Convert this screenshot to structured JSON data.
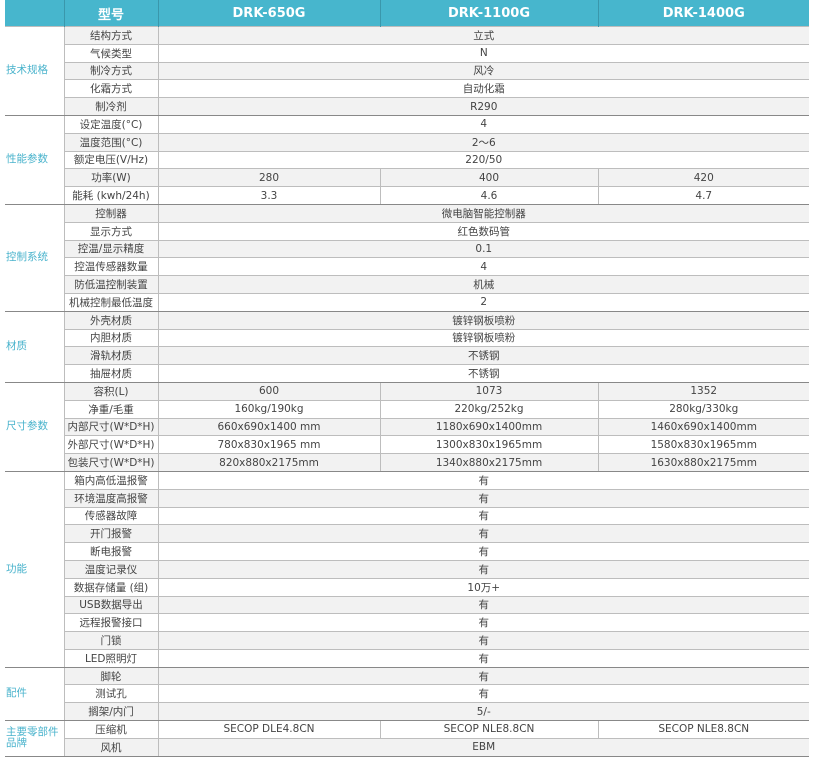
{
  "header": {
    "col0": "",
    "col1": "型号",
    "models": [
      "DRK-650G",
      "DRK-1100G",
      "DRK-1400G"
    ]
  },
  "groups": [
    {
      "name": "技术规格",
      "rows": [
        {
          "label": "结构方式",
          "values": [
            "立式"
          ]
        },
        {
          "label": "气候类型",
          "values": [
            "N"
          ]
        },
        {
          "label": "制冷方式",
          "values": [
            "风冷"
          ]
        },
        {
          "label": "化霜方式",
          "values": [
            "自动化霜"
          ]
        },
        {
          "label": "制冷剂",
          "values": [
            "R290"
          ]
        }
      ]
    },
    {
      "name": "性能参数",
      "rows": [
        {
          "label": "设定温度(°C)",
          "values": [
            "4"
          ]
        },
        {
          "label": "温度范围(°C)",
          "values": [
            "2～6"
          ]
        },
        {
          "label": "额定电压(V/Hz)",
          "values": [
            "220/50"
          ]
        },
        {
          "label": "功率(W)",
          "values": [
            "280",
            "400",
            "420"
          ]
        },
        {
          "label": "能耗 (kwh/24h)",
          "values": [
            "3.3",
            "4.6",
            "4.7"
          ]
        }
      ]
    },
    {
      "name": "控制系统",
      "rows": [
        {
          "label": "控制器",
          "values": [
            "微电脑智能控制器"
          ]
        },
        {
          "label": "显示方式",
          "values": [
            "红色数码管"
          ]
        },
        {
          "label": "控温/显示精度",
          "values": [
            "0.1"
          ]
        },
        {
          "label": "控温传感器数量",
          "values": [
            "4"
          ]
        },
        {
          "label": "防低温控制装置",
          "values": [
            "机械"
          ]
        },
        {
          "label": "机械控制最低温度",
          "values": [
            "2"
          ]
        }
      ]
    },
    {
      "name": "材质",
      "rows": [
        {
          "label": "外壳材质",
          "values": [
            "镀锌钢板喷粉"
          ]
        },
        {
          "label": "内胆材质",
          "values": [
            "镀锌钢板喷粉"
          ]
        },
        {
          "label": "滑轨材质",
          "values": [
            "不锈钢"
          ]
        },
        {
          "label": "抽屉材质",
          "values": [
            "不锈钢"
          ]
        }
      ]
    },
    {
      "name": "尺寸参数",
      "rows": [
        {
          "label": "容积(L)",
          "values": [
            "600",
            "1073",
            "1352"
          ]
        },
        {
          "label": "净重/毛重",
          "values": [
            "160kg/190kg",
            "220kg/252kg",
            "280kg/330kg"
          ]
        },
        {
          "label": "内部尺寸(W*D*H)",
          "values": [
            "660x690x1400 mm",
            "1180x690x1400mm",
            "1460x690x1400mm"
          ]
        },
        {
          "label": "外部尺寸(W*D*H)",
          "values": [
            "780x830x1965 mm",
            "1300x830x1965mm",
            "1580x830x1965mm"
          ]
        },
        {
          "label": "包装尺寸(W*D*H)",
          "values": [
            "820x880x2175mm",
            "1340x880x2175mm",
            "1630x880x2175mm"
          ]
        }
      ]
    },
    {
      "name": "功能",
      "rows": [
        {
          "label": "箱内高低温报警",
          "values": [
            "有"
          ]
        },
        {
          "label": "环境温度高报警",
          "values": [
            "有"
          ]
        },
        {
          "label": "传感器故障",
          "values": [
            "有"
          ]
        },
        {
          "label": "开门报警",
          "values": [
            "有"
          ]
        },
        {
          "label": "断电报警",
          "values": [
            "有"
          ]
        },
        {
          "label": "温度记录仪",
          "values": [
            "有"
          ]
        },
        {
          "label": "数据存储量 (组)",
          "values": [
            "10万+"
          ]
        },
        {
          "label": "USB数据导出",
          "values": [
            "有"
          ]
        },
        {
          "label": "远程报警接口",
          "values": [
            "有"
          ]
        },
        {
          "label": "门锁",
          "values": [
            "有"
          ]
        },
        {
          "label": "LED照明灯",
          "values": [
            "有"
          ]
        }
      ]
    },
    {
      "name": "配件",
      "rows": [
        {
          "label": "脚轮",
          "values": [
            "有"
          ]
        },
        {
          "label": "测试孔",
          "values": [
            "有"
          ]
        },
        {
          "label": "搁架/内门",
          "values": [
            "5/-"
          ]
        }
      ]
    },
    {
      "name": "主要零部件品牌",
      "rows": [
        {
          "label": "压缩机",
          "values": [
            "SECOP DLE4.8CN",
            "SECOP NLE8.8CN",
            "SECOP NLE8.8CN"
          ]
        },
        {
          "label": "风机",
          "values": [
            "EBM"
          ]
        }
      ]
    }
  ],
  "colors": {
    "header_bg": "#47b6cd",
    "category_text": "#49b3cc"
  }
}
